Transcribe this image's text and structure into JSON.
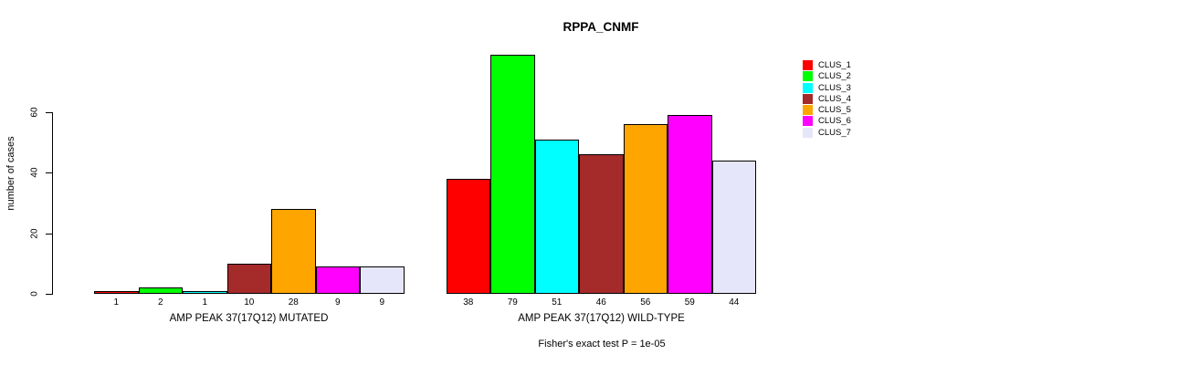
{
  "chart_data": {
    "type": "bar",
    "title": "RPPA_CNMF",
    "ylabel": "number of cases",
    "ylim": [
      0,
      80
    ],
    "yticks": [
      0,
      20,
      40,
      60
    ],
    "grid": false,
    "legend_position": "right",
    "clusters": [
      {
        "label": "CLUS_1",
        "color": "#ff0000"
      },
      {
        "label": "CLUS_2",
        "color": "#00ff00"
      },
      {
        "label": "CLUS_3",
        "color": "#00ffff"
      },
      {
        "label": "CLUS_4",
        "color": "#a52a2a"
      },
      {
        "label": "CLUS_5",
        "color": "#ffa500"
      },
      {
        "label": "CLUS_6",
        "color": "#ff00ff"
      },
      {
        "label": "CLUS_7",
        "color": "#e6e6fa"
      }
    ],
    "groups": [
      {
        "label": "AMP PEAK 37(17Q12) MUTATED",
        "values": [
          1,
          2,
          1,
          10,
          28,
          9,
          9
        ]
      },
      {
        "label": "AMP PEAK 37(17Q12) WILD-TYPE",
        "values": [
          38,
          79,
          51,
          46,
          56,
          59,
          44
        ]
      }
    ],
    "annotation": "Fisher's exact test P = 1e-05"
  }
}
